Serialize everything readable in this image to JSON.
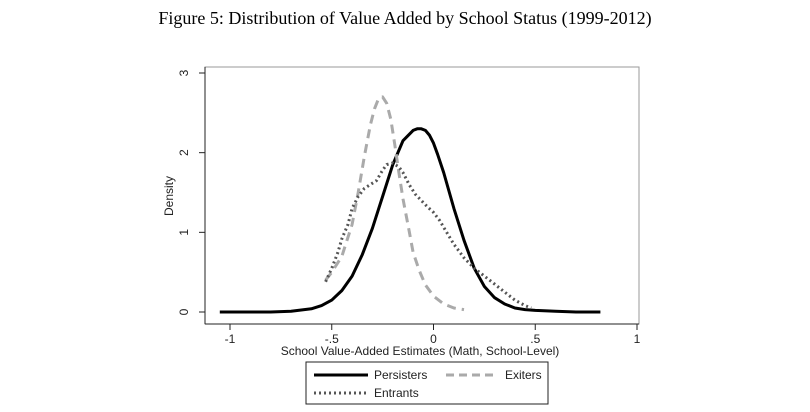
{
  "figure_title": "Figure 5: Distribution of Value Added by School Status (1999-2012)",
  "chart_data": {
    "type": "line",
    "title": "Figure 5: Distribution of Value Added by School Status (1999-2012)",
    "xlabel": "School Value-Added Estimates (Math, School-Level)",
    "ylabel": "Density",
    "xlim": [
      -1.05,
      1.0
    ],
    "ylim": [
      -0.1,
      3.0
    ],
    "xticks": [
      -1,
      -0.5,
      0,
      0.5,
      1
    ],
    "xtick_labels": [
      "-1",
      "-.5",
      "0",
      ".5",
      "1"
    ],
    "yticks": [
      0,
      1,
      2,
      3
    ],
    "ytick_labels": [
      "0",
      "1",
      "2",
      "3"
    ],
    "grid": false,
    "legend_position": "bottom-outside",
    "series": [
      {
        "name": "Persisters",
        "style": "solid",
        "color": "#000000",
        "x": [
          -1.05,
          -0.9,
          -0.8,
          -0.7,
          -0.6,
          -0.55,
          -0.5,
          -0.45,
          -0.4,
          -0.35,
          -0.3,
          -0.25,
          -0.2,
          -0.15,
          -0.1,
          -0.08,
          -0.06,
          -0.04,
          -0.02,
          0.0,
          0.02,
          0.05,
          0.1,
          0.15,
          0.2,
          0.25,
          0.3,
          0.35,
          0.4,
          0.45,
          0.5,
          0.6,
          0.7,
          0.82
        ],
        "y": [
          0.0,
          0.0,
          0.0,
          0.01,
          0.04,
          0.08,
          0.15,
          0.27,
          0.45,
          0.72,
          1.05,
          1.45,
          1.85,
          2.15,
          2.28,
          2.3,
          2.3,
          2.28,
          2.22,
          2.12,
          1.98,
          1.75,
          1.3,
          0.9,
          0.55,
          0.32,
          0.18,
          0.1,
          0.05,
          0.03,
          0.02,
          0.01,
          0.0,
          0.0
        ]
      },
      {
        "name": "Exiters",
        "style": "dashed",
        "color": "#aaaaaa",
        "x": [
          -0.53,
          -0.5,
          -0.45,
          -0.4,
          -0.37,
          -0.34,
          -0.31,
          -0.29,
          -0.27,
          -0.25,
          -0.23,
          -0.21,
          -0.19,
          -0.17,
          -0.15,
          -0.12,
          -0.1,
          -0.07,
          -0.04,
          0.0,
          0.05,
          0.1,
          0.15
        ],
        "y": [
          0.4,
          0.5,
          0.7,
          1.1,
          1.5,
          1.95,
          2.35,
          2.55,
          2.68,
          2.7,
          2.62,
          2.42,
          2.1,
          1.75,
          1.42,
          1.02,
          0.75,
          0.52,
          0.34,
          0.2,
          0.1,
          0.05,
          0.03
        ]
      },
      {
        "name": "Entrants",
        "style": "dotted",
        "color": "#555555",
        "x": [
          -0.53,
          -0.5,
          -0.47,
          -0.45,
          -0.42,
          -0.4,
          -0.37,
          -0.34,
          -0.31,
          -0.28,
          -0.25,
          -0.23,
          -0.2,
          -0.17,
          -0.15,
          -0.12,
          -0.09,
          -0.06,
          -0.03,
          0.0,
          0.03,
          0.06,
          0.1,
          0.15,
          0.2,
          0.25,
          0.3,
          0.35,
          0.4,
          0.45,
          0.48
        ],
        "y": [
          0.38,
          0.55,
          0.75,
          0.92,
          1.1,
          1.3,
          1.45,
          1.55,
          1.6,
          1.65,
          1.78,
          1.85,
          1.87,
          1.82,
          1.75,
          1.6,
          1.48,
          1.4,
          1.32,
          1.25,
          1.15,
          1.02,
          0.85,
          0.68,
          0.55,
          0.45,
          0.35,
          0.25,
          0.15,
          0.08,
          0.05
        ]
      }
    ]
  }
}
